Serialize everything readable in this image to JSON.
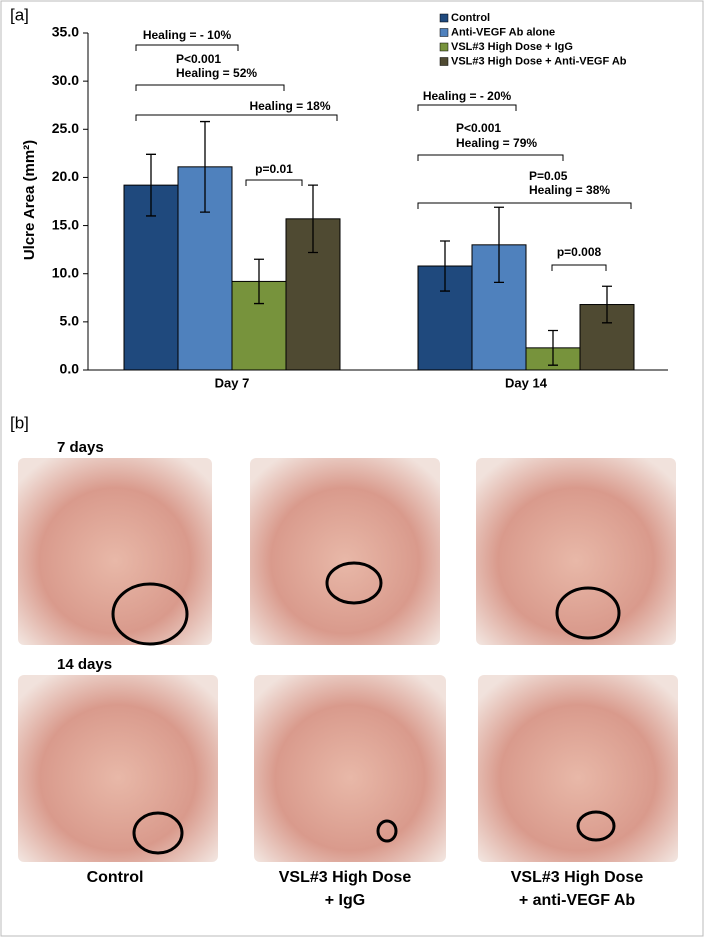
{
  "chart_data": {
    "type": "bar",
    "panel_label": "[a]",
    "categories": [
      "Day 7",
      "Day 14"
    ],
    "series": [
      {
        "name": "Control",
        "color": "#1f497d",
        "values": [
          19.2,
          10.8
        ],
        "errors": [
          3.2,
          2.6
        ]
      },
      {
        "name": "Anti-VEGF Ab alone",
        "color": "#4f81bd",
        "values": [
          21.1,
          13.0
        ],
        "errors": [
          4.7,
          3.9
        ]
      },
      {
        "name": "VSL#3 High Dose + IgG",
        "color": "#77933c",
        "values": [
          9.2,
          2.3
        ],
        "errors": [
          2.3,
          1.8
        ]
      },
      {
        "name": "VSL#3 High Dose + Anti-VEGF Ab",
        "color": "#4f4a32",
        "values": [
          15.7,
          6.8
        ],
        "errors": [
          3.5,
          1.9
        ]
      }
    ],
    "ylabel": "Ulcre Area (mm²)",
    "ylim": [
      0,
      35
    ],
    "yticks": [
      {
        "value": 0,
        "label": "0.0"
      },
      {
        "value": 5,
        "label": "5.0"
      },
      {
        "value": 10,
        "label": "10.0"
      },
      {
        "value": 15,
        "label": "15.0"
      },
      {
        "value": 20,
        "label": "20.0"
      },
      {
        "value": 25,
        "label": "25.0"
      },
      {
        "value": 30,
        "label": "30.0"
      },
      {
        "value": 35,
        "label": "35.0"
      }
    ],
    "grid": false,
    "legend": "top-right",
    "annotations": [
      {
        "text": [
          "Healing = - 10%"
        ]
      },
      {
        "text": [
          "P<0.001",
          "Healing = 52%"
        ]
      },
      {
        "text": [
          "Healing = 18%"
        ]
      },
      {
        "text": [
          "p=0.01"
        ]
      },
      {
        "text": [
          "Healing = - 20%"
        ]
      },
      {
        "text": [
          "P<0.001",
          "Healing = 79%"
        ]
      },
      {
        "text": [
          "P=0.05",
          "Healing = 38%"
        ]
      },
      {
        "text": [
          "p=0.008"
        ]
      }
    ]
  },
  "panel_b": {
    "label": "[b]",
    "rows": [
      "7 days",
      "14 days"
    ],
    "columns": [
      [
        "Control"
      ],
      [
        "VSL#3 High Dose",
        "+ IgG"
      ],
      [
        "VSL#3 High Dose",
        "+ anti-VEGF Ab"
      ]
    ]
  }
}
